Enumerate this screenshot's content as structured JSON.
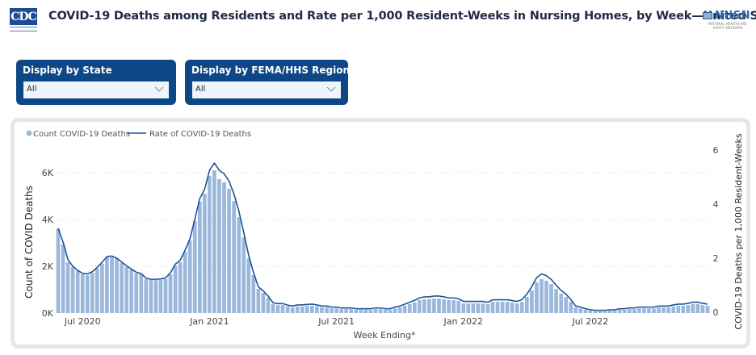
{
  "header": {
    "logo_left": "CDC",
    "title": "COVID-19 Deaths among Residents and Rate per 1,000 Resident-Weeks in Nursing Homes, by Week—United States",
    "logo_right": "NHSN",
    "logo_right_sub1": "NATIONAL HEALTHCARE",
    "logo_right_sub2": "SAFETY NETWORK"
  },
  "filters": [
    {
      "label": "Display by State",
      "value": "All",
      "icon": "chevron-down-icon"
    },
    {
      "label": "Display by FEMA/HHS Region",
      "value": "All",
      "icon": "chevron-down-icon"
    }
  ],
  "colors": {
    "slicer_bg": "#0e4786",
    "bar": "#9bb8dc",
    "line": "#1a5596"
  },
  "chart_data": {
    "type": "bar",
    "title": "",
    "legend": [
      {
        "name": "Count COVID-19 Deaths",
        "marker": "dot",
        "color": "#9bb8dc"
      },
      {
        "name": "Rate of COVID-19 Deaths",
        "marker": "line",
        "color": "#1a5596"
      }
    ],
    "legend_position": "top-left",
    "xlabel": "Week Ending*",
    "ylabel": "Count of COVID Deaths",
    "y2label": "COVID-19 Deaths per 1,000 Resident-Weeks",
    "ylim": [
      0,
      6600
    ],
    "y2lim": [
      0,
      6.5
    ],
    "yticks": [
      {
        "v": 0,
        "label": "0K"
      },
      {
        "v": 2000,
        "label": "2K"
      },
      {
        "v": 4000,
        "label": "4K"
      },
      {
        "v": 6000,
        "label": "6K"
      }
    ],
    "y2ticks": [
      {
        "v": 0,
        "label": "0"
      },
      {
        "v": 2,
        "label": "2"
      },
      {
        "v": 4,
        "label": "4"
      },
      {
        "v": 6,
        "label": "6"
      }
    ],
    "xticks": [
      {
        "index": 5,
        "label": "Jul 2020"
      },
      {
        "index": 31,
        "label": "Jan 2021"
      },
      {
        "index": 57,
        "label": "Jul 2021"
      },
      {
        "index": 83,
        "label": "Jan 2022"
      },
      {
        "index": 109,
        "label": "Jul 2022"
      }
    ],
    "grid": true,
    "series": [
      {
        "name": "Count COVID-19 Deaths",
        "type": "bar",
        "axis": "left",
        "values": [
          3600,
          2930,
          2170,
          1970,
          1800,
          1660,
          1620,
          1720,
          1900,
          2100,
          2400,
          2400,
          2340,
          2140,
          1970,
          1860,
          1690,
          1660,
          1450,
          1410,
          1410,
          1410,
          1450,
          1660,
          2030,
          2170,
          2620,
          3100,
          3930,
          4760,
          5100,
          5860,
          6100,
          5720,
          5590,
          5310,
          4790,
          4100,
          3240,
          2340,
          1620,
          1030,
          860,
          650,
          380,
          340,
          340,
          280,
          240,
          280,
          280,
          310,
          310,
          280,
          240,
          240,
          200,
          200,
          170,
          170,
          170,
          140,
          140,
          140,
          140,
          170,
          170,
          140,
          140,
          200,
          240,
          310,
          380,
          450,
          550,
          590,
          590,
          620,
          620,
          590,
          550,
          550,
          520,
          410,
          410,
          410,
          410,
          410,
          380,
          480,
          480,
          480,
          480,
          450,
          410,
          480,
          690,
          970,
          1310,
          1450,
          1380,
          1240,
          1030,
          830,
          690,
          480,
          240,
          200,
          140,
          100,
          70,
          70,
          70,
          100,
          100,
          140,
          140,
          170,
          170,
          200,
          200,
          200,
          200,
          240,
          240,
          240,
          280,
          310,
          310,
          340,
          380,
          380,
          340,
          310
        ]
      },
      {
        "name": "Rate of COVID-19 Deaths",
        "type": "line",
        "axis": "right",
        "values": [
          3.1,
          2.6,
          1.95,
          1.7,
          1.55,
          1.44,
          1.42,
          1.5,
          1.66,
          1.85,
          2.06,
          2.08,
          2.0,
          1.86,
          1.72,
          1.6,
          1.48,
          1.43,
          1.26,
          1.22,
          1.22,
          1.23,
          1.27,
          1.46,
          1.78,
          1.92,
          2.3,
          2.72,
          3.45,
          4.2,
          4.55,
          5.25,
          5.52,
          5.25,
          5.12,
          4.85,
          4.38,
          3.75,
          2.96,
          2.12,
          1.47,
          0.94,
          0.79,
          0.6,
          0.35,
          0.32,
          0.32,
          0.26,
          0.23,
          0.27,
          0.27,
          0.29,
          0.3,
          0.27,
          0.23,
          0.23,
          0.19,
          0.19,
          0.16,
          0.16,
          0.16,
          0.13,
          0.13,
          0.13,
          0.13,
          0.16,
          0.16,
          0.13,
          0.13,
          0.19,
          0.23,
          0.3,
          0.37,
          0.44,
          0.53,
          0.57,
          0.57,
          0.6,
          0.6,
          0.57,
          0.53,
          0.53,
          0.5,
          0.4,
          0.4,
          0.4,
          0.4,
          0.4,
          0.37,
          0.46,
          0.46,
          0.46,
          0.46,
          0.43,
          0.4,
          0.47,
          0.67,
          0.95,
          1.28,
          1.42,
          1.35,
          1.21,
          1.0,
          0.81,
          0.67,
          0.47,
          0.23,
          0.19,
          0.13,
          0.09,
          0.07,
          0.07,
          0.07,
          0.09,
          0.09,
          0.13,
          0.13,
          0.16,
          0.16,
          0.19,
          0.19,
          0.19,
          0.19,
          0.23,
          0.23,
          0.23,
          0.27,
          0.3,
          0.3,
          0.33,
          0.37,
          0.37,
          0.33,
          0.3
        ]
      }
    ]
  }
}
